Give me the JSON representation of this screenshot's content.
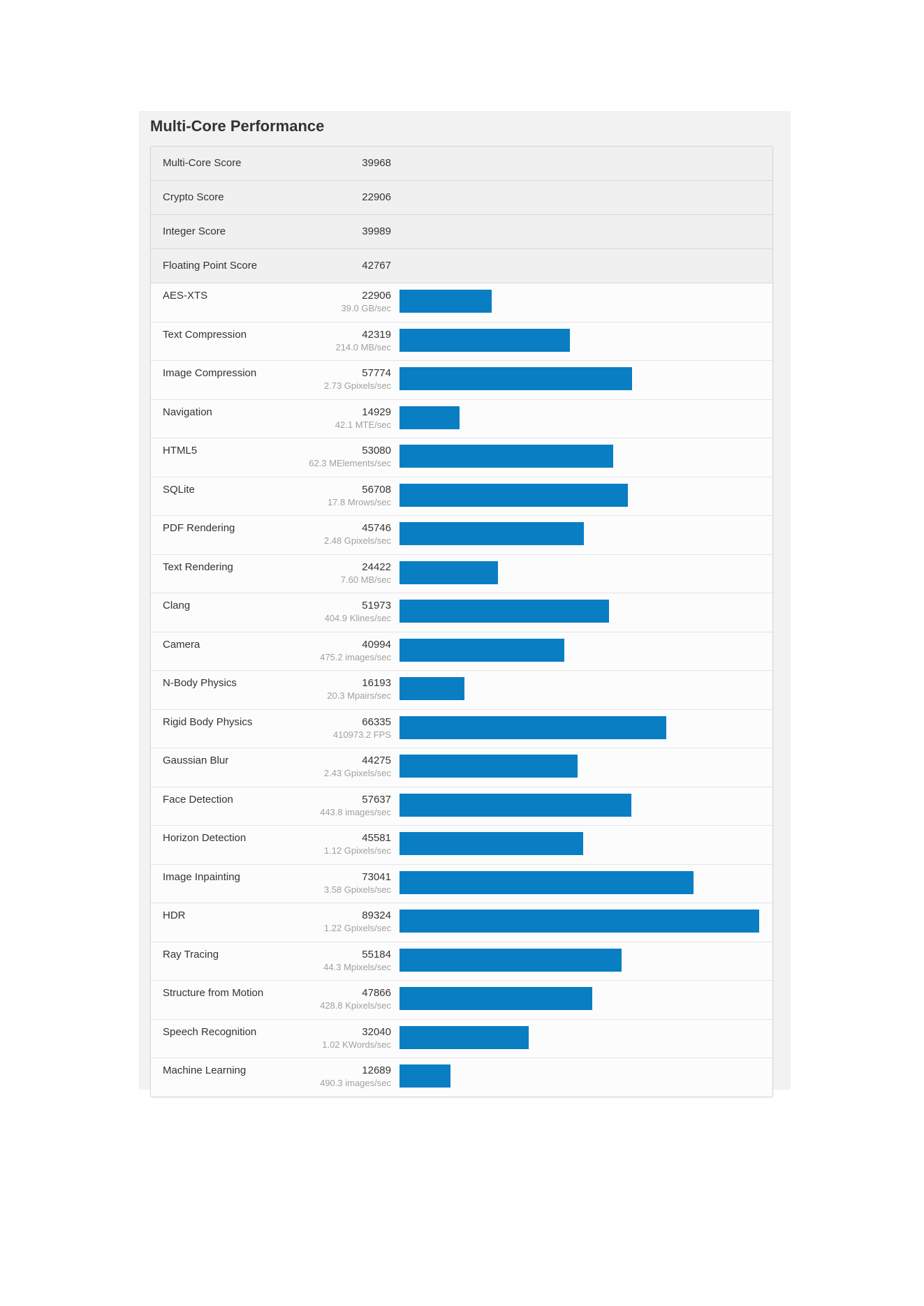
{
  "page": {
    "title": "Multi-Core Performance"
  },
  "colors": {
    "bar": "#0a7ec2",
    "panel_background": "#f2f2f2",
    "score_row_background": "#f0f0f0"
  },
  "scores": [
    {
      "name": "Multi-Core Score",
      "value": "39968"
    },
    {
      "name": "Crypto Score",
      "value": "22906"
    },
    {
      "name": "Integer Score",
      "value": "39989"
    },
    {
      "name": "Floating Point Score",
      "value": "42767"
    }
  ],
  "chart_data": {
    "type": "bar",
    "orientation": "horizontal",
    "xlim": [
      0,
      89324
    ],
    "categories": [
      "AES-XTS",
      "Text Compression",
      "Image Compression",
      "Navigation",
      "HTML5",
      "SQLite",
      "PDF Rendering",
      "Text Rendering",
      "Clang",
      "Camera",
      "N-Body Physics",
      "Rigid Body Physics",
      "Gaussian Blur",
      "Face Detection",
      "Horizon Detection",
      "Image Inpainting",
      "HDR",
      "Ray Tracing",
      "Structure from Motion",
      "Speech Recognition",
      "Machine Learning"
    ],
    "values": [
      22906,
      42319,
      57774,
      14929,
      53080,
      56708,
      45746,
      24422,
      51973,
      40994,
      16193,
      66335,
      44275,
      57637,
      45581,
      73041,
      89324,
      55184,
      47866,
      32040,
      12689
    ],
    "rates": [
      "39.0 GB/sec",
      "214.0 MB/sec",
      "2.73 Gpixels/sec",
      "42.1 MTE/sec",
      "62.3 MElements/sec",
      "17.8 Mrows/sec",
      "2.48 Gpixels/sec",
      "7.60 MB/sec",
      "404.9 Klines/sec",
      "475.2 images/sec",
      "20.3 Mpairs/sec",
      "410973.2 FPS",
      "2.43 Gpixels/sec",
      "443.8 images/sec",
      "1.12 Gpixels/sec",
      "3.58 Gpixels/sec",
      "1.22 Gpixels/sec",
      "44.3 Mpixels/sec",
      "428.8 Kpixels/sec",
      "1.02 KWords/sec",
      "490.3 images/sec"
    ]
  }
}
